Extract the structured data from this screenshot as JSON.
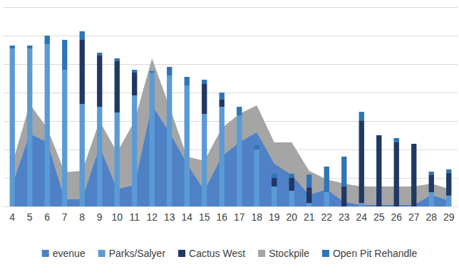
{
  "chart_data": {
    "type": "bar",
    "categories": [
      "4",
      "5",
      "6",
      "7",
      "8",
      "9",
      "10",
      "11",
      "12",
      "13",
      "14",
      "15",
      "16",
      "17",
      "18",
      "19",
      "20",
      "21",
      "22",
      "23",
      "24",
      "25",
      "26",
      "27",
      "28",
      "29"
    ],
    "ylim": [
      0,
      7
    ],
    "yticks": [
      0,
      1,
      2,
      3,
      4,
      5,
      6,
      7
    ],
    "grid": true,
    "stacked": true,
    "legend": "bottom",
    "tick_labels": "x",
    "series": [
      {
        "name": null,
        "type": "area",
        "color": "#A5A5A5",
        "values": [
          1.5,
          3.6,
          2.75,
          1.2,
          1.25,
          3.0,
          1.9,
          3.0,
          5.2,
          3.5,
          1.75,
          1.6,
          2.75,
          3.25,
          3.55,
          2.25,
          2.25,
          1.25,
          0.95,
          0.8,
          0.7,
          0.7,
          0.7,
          0.7,
          0.8,
          0.62
        ]
      },
      {
        "name": "evenue",
        "type": "area",
        "color": "#4F81C7",
        "values": [
          0.75,
          2.55,
          2.25,
          0.25,
          0.25,
          2.1,
          0.6,
          0.75,
          3.55,
          2.6,
          1.5,
          0.55,
          1.75,
          2.25,
          2.6,
          1.5,
          1.1,
          0.4,
          0.6,
          0.15,
          0.05,
          0.05,
          0.05,
          0.05,
          0.4,
          0.2
        ]
      },
      {
        "name": "Parks/Salyer",
        "type": "bar",
        "color": "#5B9BD5",
        "values": [
          5.55,
          5.55,
          5.7,
          4.8,
          3.6,
          3.5,
          3.3,
          3.9,
          4.7,
          4.6,
          4.25,
          3.25,
          3.5,
          3.2,
          2.0,
          0.7,
          0.55,
          0.12,
          0.5,
          0,
          0.12,
          0,
          0,
          0,
          0.5,
          0.38
        ]
      },
      {
        "name": "Cactus West",
        "type": "bar",
        "color": "#203864",
        "values": [
          0,
          0,
          0,
          0,
          2.25,
          1.8,
          1.8,
          0.8,
          0,
          0,
          0,
          1.05,
          0.25,
          0,
          0,
          0.3,
          0.45,
          0.55,
          0,
          0.7,
          2.9,
          2.5,
          2.25,
          2.2,
          0.6,
          0.8
        ]
      },
      {
        "name": "Stockpile",
        "type": "bar",
        "color": "#A5A5A5",
        "values": [
          0,
          0,
          0,
          0,
          0,
          0,
          0,
          0,
          0,
          0,
          0,
          0,
          0,
          0,
          0,
          0,
          0,
          0,
          0,
          0,
          0,
          0,
          0,
          0,
          0,
          0
        ]
      },
      {
        "name": "Open Pit Rehandle",
        "type": "bar",
        "color": "#2E75B6",
        "values": [
          0.1,
          0.1,
          0.3,
          1.05,
          0.3,
          0.1,
          0.1,
          0.1,
          0.05,
          0.3,
          0.3,
          0.15,
          0.25,
          0.3,
          0.15,
          0.15,
          0.15,
          0.45,
          0.9,
          1.05,
          0.3,
          0,
          0.15,
          0,
          0.12,
          0.12
        ]
      }
    ]
  }
}
